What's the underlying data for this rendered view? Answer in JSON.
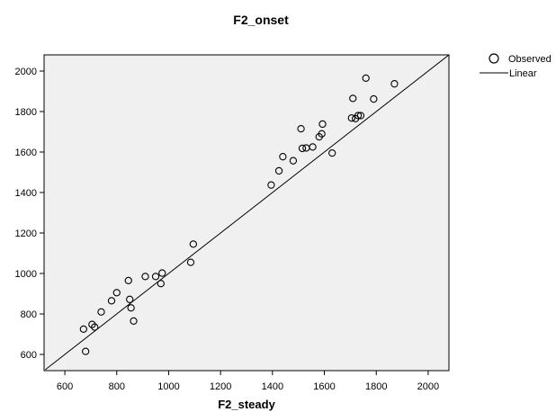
{
  "chart_data": {
    "type": "scatter",
    "title": "F2_onset",
    "xlabel": "F2_steady",
    "ylabel": "",
    "xlim": [
      520,
      2080
    ],
    "ylim": [
      520,
      2080
    ],
    "x_ticks": [
      600,
      800,
      1000,
      1200,
      1400,
      1600,
      1800,
      2000
    ],
    "y_ticks": [
      600,
      800,
      1000,
      1200,
      1400,
      1600,
      1800,
      2000
    ],
    "grid": false,
    "legend_position": "top-right",
    "colors": {
      "plot_background": "#f0f0f0",
      "marks": "#000000"
    },
    "series": [
      {
        "name": "Observed",
        "mark": "hollow-circle",
        "points": [
          [
            672,
            725
          ],
          [
            680,
            615
          ],
          [
            705,
            748
          ],
          [
            715,
            735
          ],
          [
            740,
            810
          ],
          [
            780,
            865
          ],
          [
            800,
            905
          ],
          [
            845,
            965
          ],
          [
            850,
            872
          ],
          [
            855,
            830
          ],
          [
            865,
            765
          ],
          [
            910,
            985
          ],
          [
            950,
            985
          ],
          [
            970,
            950
          ],
          [
            975,
            1002
          ],
          [
            1085,
            1055
          ],
          [
            1095,
            1145
          ],
          [
            1395,
            1437
          ],
          [
            1425,
            1507
          ],
          [
            1440,
            1577
          ],
          [
            1480,
            1557
          ],
          [
            1510,
            1715
          ],
          [
            1515,
            1618
          ],
          [
            1530,
            1620
          ],
          [
            1555,
            1625
          ],
          [
            1580,
            1675
          ],
          [
            1590,
            1690
          ],
          [
            1593,
            1738
          ],
          [
            1630,
            1595
          ],
          [
            1705,
            1768
          ],
          [
            1710,
            1865
          ],
          [
            1720,
            1765
          ],
          [
            1730,
            1780
          ],
          [
            1740,
            1780
          ],
          [
            1760,
            1965
          ],
          [
            1790,
            1862
          ],
          [
            1870,
            1937
          ]
        ]
      },
      {
        "name": "Linear",
        "mark": "line",
        "line": [
          [
            525,
            525
          ],
          [
            2080,
            2080
          ]
        ]
      }
    ]
  }
}
